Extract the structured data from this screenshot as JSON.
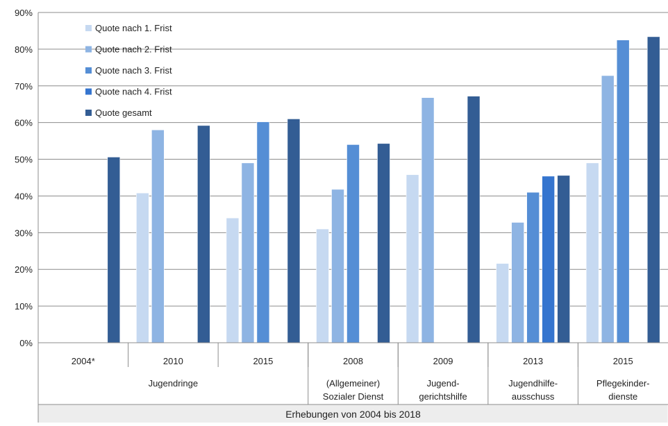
{
  "chart_data": {
    "type": "bar",
    "ylim": [
      0,
      90
    ],
    "y_tick_step": 10,
    "y_tick_format": "percent",
    "grid": true,
    "legend_position": "top-left",
    "xlabel": "Erhebungen von 2004 bis 2018",
    "groups": [
      {
        "label": "Jugendringe",
        "years": [
          "2004*",
          "2010",
          "2015"
        ]
      },
      {
        "label": "(Allgemeiner) Sozialer Dienst",
        "years": [
          "2008"
        ]
      },
      {
        "label": "Jugend-gerichtshilfe",
        "years": [
          "2009"
        ]
      },
      {
        "label": "Jugendhilfe-ausschuss",
        "years": [
          "2013"
        ]
      },
      {
        "label": "Pflegekinder-dienste",
        "years": [
          "2015"
        ]
      }
    ],
    "group_label_lines": [
      [
        "Jugendringe"
      ],
      [
        "(Allgemeiner)",
        "Sozialer Dienst"
      ],
      [
        "Jugend-",
        "gerichtshilfe"
      ],
      [
        "Jugendhilfe-",
        "ausschuss"
      ],
      [
        "Pflegekinder-",
        "dienste"
      ]
    ],
    "categories": [
      "2004*",
      "2010",
      "2015",
      "2008",
      "2009",
      "2013",
      "2015"
    ],
    "series": [
      {
        "name": "Quote nach 1. Frist",
        "color": "#c6d9f1",
        "values": [
          null,
          40.8,
          34.0,
          31.0,
          45.8,
          21.6,
          49.0
        ]
      },
      {
        "name": "Quote nach 2. Frist",
        "color": "#8eb4e3",
        "values": [
          null,
          58.0,
          49.0,
          41.8,
          66.8,
          32.8,
          72.8
        ]
      },
      {
        "name": "Quote nach 3. Frist",
        "color": "#558ed5",
        "values": [
          null,
          null,
          60.2,
          54.0,
          null,
          41.0,
          82.5
        ]
      },
      {
        "name": "Quote nach 4. Frist",
        "color": "#3575cf",
        "values": [
          null,
          null,
          null,
          null,
          null,
          45.4,
          null
        ]
      },
      {
        "name": "Quote gesamt",
        "color": "#335d94",
        "values": [
          50.6,
          59.2,
          61.0,
          54.3,
          67.2,
          45.6,
          83.4
        ]
      }
    ]
  }
}
